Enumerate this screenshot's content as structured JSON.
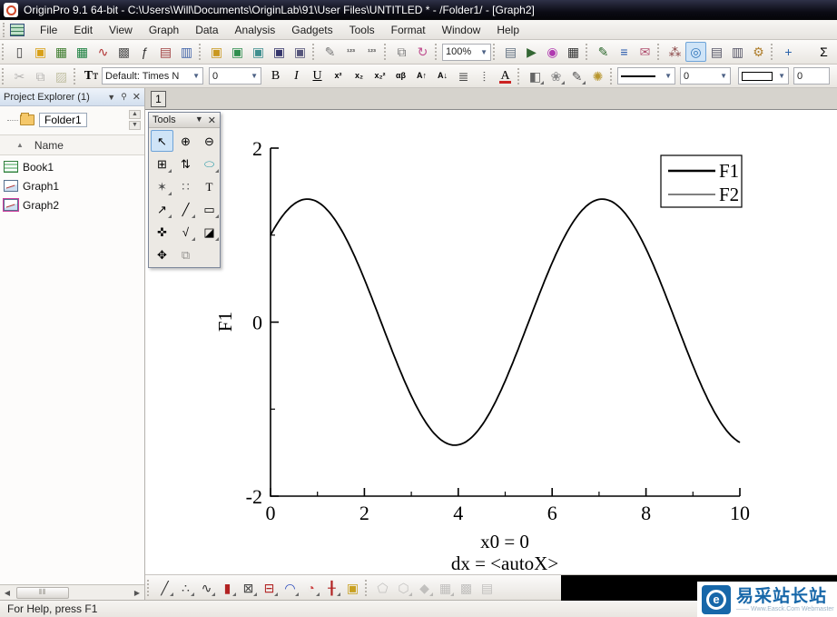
{
  "window": {
    "title": "OriginPro 9.1 64-bit - C:\\Users\\Will\\Documents\\OriginLab\\91\\User Files\\UNTITLED * - /Folder1/ - [Graph2]"
  },
  "menu": {
    "items": [
      "File",
      "Edit",
      "View",
      "Graph",
      "Data",
      "Analysis",
      "Gadgets",
      "Tools",
      "Format",
      "Window",
      "Help"
    ]
  },
  "toolbar_standard": {
    "zoom_value": "100%",
    "sigma_label": "Σ",
    "icons": [
      {
        "name": "new-project",
        "glyph": "▯",
        "color": "#444444"
      },
      {
        "name": "new-folder",
        "glyph": "▣",
        "color": "#d8a018"
      },
      {
        "name": "new-workbook",
        "glyph": "▦",
        "color": "#3f7d2f"
      },
      {
        "name": "new-excel",
        "glyph": "▦",
        "color": "#1c8040"
      },
      {
        "name": "new-graph",
        "glyph": "∿",
        "color": "#b03030"
      },
      {
        "name": "new-matrix",
        "glyph": "▩",
        "color": "#555555"
      },
      {
        "name": "new-function",
        "glyph": "ƒ",
        "color": "#333333"
      },
      {
        "name": "new-layout",
        "glyph": "▤",
        "color": "#a04040"
      },
      {
        "name": "new-notes",
        "glyph": "▥",
        "color": "#4466aa"
      },
      {
        "name": "open",
        "glyph": "▣",
        "color": "#c99820",
        "sep": true
      },
      {
        "name": "open-excel",
        "glyph": "▣",
        "color": "#2f8f4f"
      },
      {
        "name": "open-template",
        "glyph": "▣",
        "color": "#3f8f8f"
      },
      {
        "name": "save-project",
        "glyph": "▣",
        "color": "#35356b"
      },
      {
        "name": "save-template",
        "glyph": "▣",
        "color": "#55557b"
      },
      {
        "name": "import-wizard",
        "glyph": "✎",
        "color": "#777777",
        "sep": true
      },
      {
        "name": "import-single-ascii",
        "glyph": "¹²³",
        "color": "#555555",
        "small": true
      },
      {
        "name": "import-multiple-ascii",
        "glyph": "¹²³",
        "color": "#555555",
        "small": true
      },
      {
        "name": "batch-processing",
        "glyph": "⧉",
        "color": "#777777",
        "sep": true
      },
      {
        "name": "refresh-run",
        "glyph": "↻",
        "color": "#c05090"
      }
    ],
    "icons_right": [
      {
        "name": "print",
        "glyph": "▤",
        "color": "#607080",
        "sep": true
      },
      {
        "name": "slide-show",
        "glyph": "▶",
        "color": "#336633"
      },
      {
        "name": "video-player",
        "glyph": "◉",
        "color": "#b03ab0"
      },
      {
        "name": "film-strip",
        "glyph": "▦",
        "color": "#333333"
      },
      {
        "name": "draw-mode",
        "glyph": "✎",
        "color": "#2a662a",
        "sep": true
      },
      {
        "name": "split-view",
        "glyph": "≡",
        "color": "#2255aa"
      },
      {
        "name": "send-graph-mail",
        "glyph": "✉",
        "color": "#b05070"
      },
      {
        "name": "project-structure",
        "glyph": "⁂",
        "color": "#884444",
        "sep": true
      },
      {
        "name": "project-explorer-toggle",
        "glyph": "◎",
        "color": "#3377bb",
        "active": true
      },
      {
        "name": "results-log",
        "glyph": "▤",
        "color": "#555566"
      },
      {
        "name": "command-window",
        "glyph": "▥",
        "color": "#555566"
      },
      {
        "name": "code-builder",
        "glyph": "⚙",
        "color": "#b08030"
      },
      {
        "name": "add-layer",
        "glyph": "+",
        "color": "#2a62aa",
        "sep": true
      }
    ]
  },
  "toolbar_format": {
    "font_value": "Default: Times N",
    "size_value": "0",
    "line_width_value": "0",
    "edge_width_value": "0",
    "clipboard_icons": [
      {
        "name": "cut",
        "glyph": "✂",
        "color": "#555555",
        "disabled": true
      },
      {
        "name": "copy",
        "glyph": "⧉",
        "color": "#555555",
        "disabled": true
      },
      {
        "name": "paste",
        "glyph": "▨",
        "color": "#777733",
        "disabled": true
      }
    ],
    "text_icons": [
      {
        "name": "bold",
        "glyph": "B",
        "serif": true
      },
      {
        "name": "italic",
        "glyph": "I",
        "serif": true,
        "italic": true
      },
      {
        "name": "underline",
        "glyph": "U",
        "serif": true,
        "underline": true
      },
      {
        "name": "superscript",
        "glyph": "x²",
        "small": true
      },
      {
        "name": "subscript",
        "glyph": "x₂",
        "small": true
      },
      {
        "name": "super-subscript",
        "glyph": "x₂²",
        "small": true
      },
      {
        "name": "greek",
        "glyph": "αβ",
        "small": true
      },
      {
        "name": "increase-font",
        "glyph": "A↑",
        "small": true
      },
      {
        "name": "decrease-font",
        "glyph": "A↓",
        "small": true
      },
      {
        "name": "alignment",
        "glyph": "≣",
        "color": "#444444"
      },
      {
        "name": "vertical-text",
        "glyph": "⦙",
        "color": "#444444"
      },
      {
        "name": "font-color",
        "glyph": "A",
        "serif": true,
        "colorbar": "#cc2222"
      }
    ],
    "style_icons": [
      {
        "name": "fill-color",
        "glyph": "◧",
        "color": "#666666",
        "variant": true,
        "sep": true
      },
      {
        "name": "pattern-palette",
        "glyph": "❀",
        "color": "#888888",
        "variant": true
      },
      {
        "name": "line-color",
        "glyph": "✎",
        "color": "#555555",
        "variant": true
      },
      {
        "name": "lighting",
        "glyph": "✺",
        "color": "#b8962e"
      }
    ]
  },
  "project_explorer": {
    "title": "Project Explorer (1)",
    "folder_label": "Folder1",
    "column_header": "Name",
    "items": [
      {
        "label": "Book1",
        "type": "workbook"
      },
      {
        "label": "Graph1",
        "type": "graph"
      },
      {
        "label": "Graph2",
        "type": "graph",
        "active": true
      }
    ]
  },
  "graph_window": {
    "layer_badge": "1"
  },
  "tools_palette": {
    "title": "Tools",
    "tools": [
      {
        "name": "pointer",
        "glyph": "↖",
        "selected": true
      },
      {
        "name": "zoom-in",
        "glyph": "⊕"
      },
      {
        "name": "zoom-out",
        "glyph": "⊖"
      },
      {
        "name": "screen-reader",
        "glyph": "⊞",
        "variant": true
      },
      {
        "name": "vertical-cursor",
        "glyph": "⇅"
      },
      {
        "name": "region-reader",
        "glyph": "⬭",
        "color": "#2a9aa8",
        "variant": true
      },
      {
        "name": "mask-points",
        "glyph": "✶",
        "color": "#555555",
        "variant": true
      },
      {
        "name": "cluster",
        "glyph": "∷",
        "color": "#555555"
      },
      {
        "name": "text-tool",
        "glyph": "T",
        "serif": true
      },
      {
        "name": "arrow-tool",
        "glyph": "↗",
        "variant": true
      },
      {
        "name": "line-tool",
        "glyph": "╱",
        "variant": true
      },
      {
        "name": "rectangle-tool",
        "glyph": "▭",
        "variant": true
      },
      {
        "name": "pan-tool",
        "glyph": "✜"
      },
      {
        "name": "insert-equation",
        "glyph": "√",
        "variant": true
      },
      {
        "name": "insert-graph",
        "glyph": "◪",
        "variant": true
      },
      {
        "name": "draw-data-tool",
        "glyph": "✥"
      },
      {
        "name": "object-edit-tool",
        "glyph": "⧉",
        "disabled": true
      }
    ]
  },
  "chart_data": {
    "type": "line",
    "expression": "sin(x) + cos(x)",
    "series": [
      {
        "name": "F1",
        "amplitude": 1.41421,
        "phase": 0.7854,
        "stroke_width": 1.8
      },
      {
        "name": "F2",
        "amplitude": 1.41421,
        "phase": 0.7854,
        "stroke_width": 0.9
      }
    ],
    "xlim": [
      0,
      10
    ],
    "ylim": [
      -2,
      2
    ],
    "x_ticks": [
      0,
      2,
      4,
      6,
      8,
      10
    ],
    "x_minor_ticks": [
      1,
      3,
      5,
      7,
      9
    ],
    "y_ticks": [
      2,
      0,
      -2
    ],
    "y_minor_ticks": [
      1,
      -1
    ],
    "ylabel": "F1",
    "xlabel_line1": "x0 = 0",
    "xlabel_line2": "dx = <autoX>",
    "legend": [
      {
        "label": "F1",
        "stroke_width": 2.4
      },
      {
        "label": "F2",
        "stroke_width": 1.0
      }
    ]
  },
  "toolbar_2d": {
    "icons": [
      {
        "name": "line-plot",
        "glyph": "╱",
        "color": "#333333",
        "variant": true
      },
      {
        "name": "scatter-plot",
        "glyph": "∴",
        "color": "#333333",
        "variant": true
      },
      {
        "name": "line-symbol-plot",
        "glyph": "∿",
        "color": "#333333",
        "variant": true
      },
      {
        "name": "column-plot",
        "glyph": "▮",
        "color": "#b22222",
        "variant": true
      },
      {
        "name": "multi-panel-plot",
        "glyph": "⊠",
        "color": "#444444",
        "variant": true
      },
      {
        "name": "box-plot",
        "glyph": "⊟",
        "color": "#b22222",
        "variant": true
      },
      {
        "name": "spline-plot",
        "glyph": "◠",
        "color": "#2244bb",
        "variant": true
      },
      {
        "name": "pie-chart",
        "glyph": "◔",
        "color": "#cc4444",
        "variant": true
      },
      {
        "name": "stock-chart",
        "glyph": "╂",
        "color": "#b22222",
        "variant": true
      },
      {
        "name": "template-library",
        "glyph": "▣",
        "color": "#c8a020"
      },
      {
        "name": "polar-plot",
        "glyph": "⬠",
        "color": "#777777",
        "disabled": true,
        "sep": true
      },
      {
        "name": "ternary-plot",
        "glyph": "⬡",
        "color": "#777777",
        "disabled": true,
        "variant": true
      },
      {
        "name": "3d-scatter-plot",
        "glyph": "◆",
        "color": "#777777",
        "disabled": true,
        "variant": true
      },
      {
        "name": "3d-surface-plot",
        "glyph": "▦",
        "color": "#777777",
        "disabled": true,
        "variant": true
      },
      {
        "name": "contour-plot",
        "glyph": "▩",
        "color": "#777777",
        "disabled": true
      },
      {
        "name": "image-plot",
        "glyph": "▤",
        "color": "#777777",
        "disabled": true
      }
    ]
  },
  "status_bar": {
    "text": "For Help, press F1"
  },
  "watermark": {
    "logo_letter": "e",
    "title": "易采站长站",
    "tagline": "—— Www.Easck.Com Webmaster"
  }
}
